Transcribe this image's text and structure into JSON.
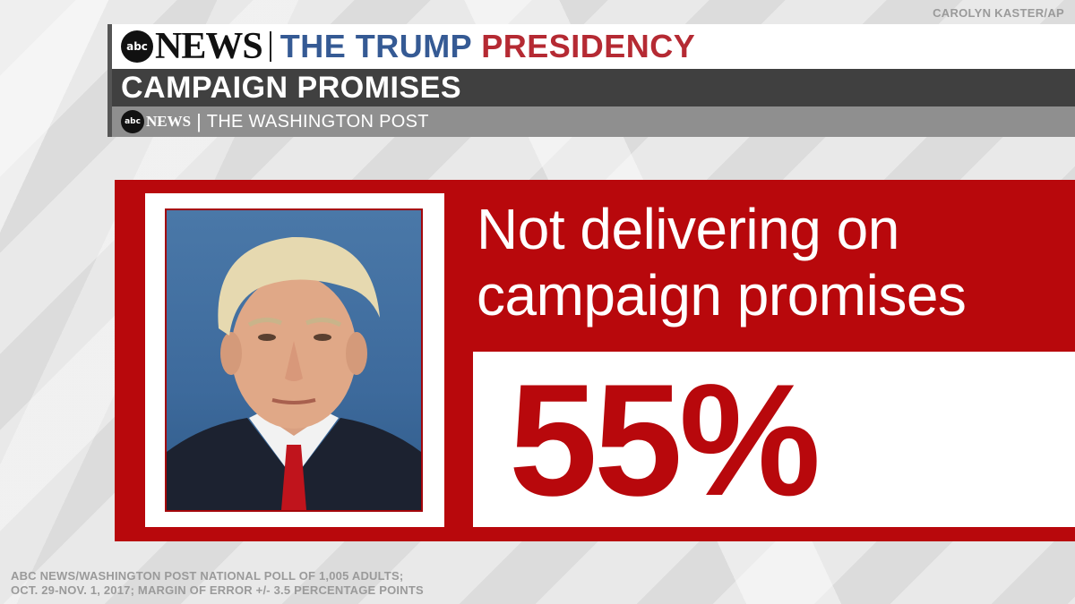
{
  "credit": "CAROLYN KASTER/AP",
  "header": {
    "logo_bug": "abc",
    "logo_news": "NEWS",
    "title_part1": "THE TRUMP",
    "title_part2": "PRESIDENCY",
    "subtitle": "CAMPAIGN PROMISES",
    "source_bug": "abc",
    "source_news": "NEWS",
    "source_sep": "|",
    "source_partner": "THE WASHINGTON POST"
  },
  "panel": {
    "headline_line1": "Not delivering on",
    "headline_line2": "campaign promises",
    "stat_value": "55%",
    "photo_icon": "portrait-photo"
  },
  "footnote": {
    "line1": "ABC NEWS/WASHINGTON POST NATIONAL POLL OF 1,005 ADULTS;",
    "line2": "OCT. 29-NOV. 1, 2017; MARGIN OF ERROR +/- 3.5 PERCENTAGE POINTS"
  },
  "colors": {
    "brand_red": "#b8080c",
    "title_blue": "#355a94",
    "title_red": "#b52a33",
    "subtitle_bar": "#404040",
    "source_bar": "#8f8f8f"
  }
}
